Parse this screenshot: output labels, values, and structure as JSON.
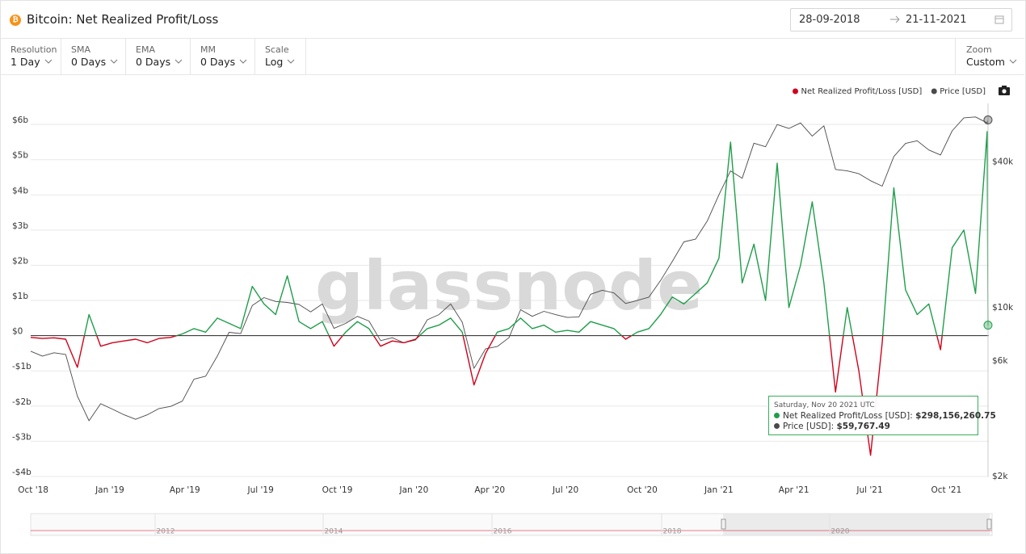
{
  "header": {
    "title": "Bitcoin: Net Realized Profit/Loss",
    "date_from": "28-09-2018",
    "date_to": "21-11-2021"
  },
  "controls": [
    {
      "label": "Resolution",
      "value": "1 Day"
    },
    {
      "label": "SMA",
      "value": "0 Days"
    },
    {
      "label": "EMA",
      "value": "0 Days"
    },
    {
      "label": "MM",
      "value": "0 Days"
    },
    {
      "label": "Scale",
      "value": "Log"
    }
  ],
  "zoom": {
    "label": "Zoom",
    "value": "Custom"
  },
  "watermark": "glassnode",
  "tooltip": {
    "title": "Saturday, Nov 20 2021 UTC",
    "labels": [
      "$298,156,260.75",
      "$59,767.49"
    ]
  },
  "navigator": {
    "labels": [
      "2012",
      "2014",
      "2016",
      "2018",
      "2020"
    ]
  },
  "chart_data": {
    "type": "line",
    "legend": "top-right",
    "grid": true,
    "x": [
      "2018-09-28",
      "2018-10-12",
      "2018-10-26",
      "2018-11-09",
      "2018-11-23",
      "2018-12-07",
      "2018-12-21",
      "2019-01-04",
      "2019-01-18",
      "2019-02-01",
      "2019-02-15",
      "2019-03-01",
      "2019-03-15",
      "2019-03-29",
      "2019-04-12",
      "2019-04-26",
      "2019-05-10",
      "2019-05-24",
      "2019-06-07",
      "2019-06-21",
      "2019-07-05",
      "2019-07-19",
      "2019-08-02",
      "2019-08-16",
      "2019-08-30",
      "2019-09-13",
      "2019-09-27",
      "2019-10-11",
      "2019-10-25",
      "2019-11-08",
      "2019-11-22",
      "2019-12-06",
      "2019-12-20",
      "2020-01-03",
      "2020-01-17",
      "2020-01-31",
      "2020-02-14",
      "2020-02-28",
      "2020-03-13",
      "2020-03-27",
      "2020-04-10",
      "2020-04-24",
      "2020-05-08",
      "2020-05-22",
      "2020-06-05",
      "2020-06-19",
      "2020-07-03",
      "2020-07-17",
      "2020-07-31",
      "2020-08-14",
      "2020-08-28",
      "2020-09-11",
      "2020-09-25",
      "2020-10-09",
      "2020-10-23",
      "2020-11-06",
      "2020-11-20",
      "2020-12-04",
      "2020-12-18",
      "2021-01-01",
      "2021-01-15",
      "2021-01-29",
      "2021-02-12",
      "2021-02-26",
      "2021-03-12",
      "2021-03-26",
      "2021-04-09",
      "2021-04-23",
      "2021-05-07",
      "2021-05-21",
      "2021-06-04",
      "2021-06-18",
      "2021-07-02",
      "2021-07-16",
      "2021-07-30",
      "2021-08-13",
      "2021-08-27",
      "2021-09-10",
      "2021-09-24",
      "2021-10-08",
      "2021-10-22",
      "2021-11-05",
      "2021-11-19",
      "2021-11-20"
    ],
    "xlim": [
      "2018-09-28",
      "2021-11-21"
    ],
    "xticks": [
      {
        "value": "2018-10-01",
        "label": "Oct '18"
      },
      {
        "value": "2019-01-01",
        "label": "Jan '19"
      },
      {
        "value": "2019-04-01",
        "label": "Apr '19"
      },
      {
        "value": "2019-07-01",
        "label": "Jul '19"
      },
      {
        "value": "2019-10-01",
        "label": "Oct '19"
      },
      {
        "value": "2020-01-01",
        "label": "Jan '20"
      },
      {
        "value": "2020-04-01",
        "label": "Apr '20"
      },
      {
        "value": "2020-07-01",
        "label": "Jul '20"
      },
      {
        "value": "2020-10-01",
        "label": "Oct '20"
      },
      {
        "value": "2021-01-01",
        "label": "Jan '21"
      },
      {
        "value": "2021-04-01",
        "label": "Apr '21"
      },
      {
        "value": "2021-07-01",
        "label": "Jul '21"
      },
      {
        "value": "2021-10-01",
        "label": "Oct '21"
      }
    ],
    "ylim": [
      -4000000000,
      6600000000
    ],
    "yticks": [
      {
        "value": -4000000000,
        "label": "-$4b"
      },
      {
        "value": -3000000000,
        "label": "-$3b"
      },
      {
        "value": -2000000000,
        "label": "-$2b"
      },
      {
        "value": -1000000000,
        "label": "-$1b"
      },
      {
        "value": 0,
        "label": "$0"
      },
      {
        "value": 1000000000,
        "label": "$1b"
      },
      {
        "value": 2000000000,
        "label": "$2b"
      },
      {
        "value": 3000000000,
        "label": "$3b"
      },
      {
        "value": 4000000000,
        "label": "$4b"
      },
      {
        "value": 5000000000,
        "label": "$5b"
      },
      {
        "value": 6000000000,
        "label": "$6b"
      }
    ],
    "y2lim": [
      2000,
      70000
    ],
    "y2log": true,
    "y2ticks": [
      {
        "value": 2000,
        "label": "$2k"
      },
      {
        "value": 6000,
        "label": "$6k"
      },
      {
        "value": 10000,
        "label": "$10k"
      },
      {
        "value": 40000,
        "label": "$40k"
      }
    ],
    "series": [
      {
        "name": "Net Realized Profit/Loss [USD]",
        "color": "#1f9e4a",
        "negative_color": "#d0021b",
        "axis": "y",
        "values": [
          -50000000,
          -80000000,
          -60000000,
          -100000000,
          -900000000,
          600000000,
          -300000000,
          -200000000,
          -150000000,
          -100000000,
          -200000000,
          -80000000,
          -50000000,
          50000000,
          200000000,
          100000000,
          500000000,
          350000000,
          200000000,
          1400000000,
          900000000,
          600000000,
          1700000000,
          400000000,
          200000000,
          400000000,
          -300000000,
          100000000,
          400000000,
          200000000,
          -300000000,
          -150000000,
          -200000000,
          -100000000,
          200000000,
          300000000,
          500000000,
          100000000,
          -1400000000,
          -500000000,
          100000000,
          200000000,
          500000000,
          200000000,
          300000000,
          100000000,
          150000000,
          100000000,
          400000000,
          300000000,
          200000000,
          -100000000,
          100000000,
          200000000,
          600000000,
          1100000000,
          900000000,
          1200000000,
          1500000000,
          2200000000,
          5500000000,
          1500000000,
          2600000000,
          1000000000,
          4900000000,
          800000000,
          2000000000,
          3800000000,
          1500000000,
          -1600000000,
          800000000,
          -1000000000,
          -3400000000,
          -200000000,
          4200000000,
          1300000000,
          600000000,
          900000000,
          -400000000,
          2500000000,
          3000000000,
          1200000000,
          5800000000,
          298156260.75
        ]
      },
      {
        "name": "Price [USD]",
        "color": "#4a4a4a",
        "axis": "y2",
        "values": [
          6600,
          6300,
          6500,
          6400,
          4300,
          3400,
          4000,
          3800,
          3600,
          3450,
          3600,
          3820,
          3900,
          4100,
          5050,
          5200,
          6300,
          7900,
          7800,
          10200,
          11000,
          10600,
          10500,
          10300,
          9600,
          10350,
          8200,
          8600,
          9200,
          8800,
          7300,
          7500,
          7150,
          7350,
          8900,
          9350,
          10350,
          8700,
          5600,
          6750,
          6900,
          7500,
          9800,
          9200,
          9650,
          9350,
          9100,
          9150,
          11350,
          11800,
          11500,
          10400,
          10700,
          11050,
          12950,
          15500,
          18700,
          19200,
          22800,
          29300,
          36800,
          34300,
          47900,
          46300,
          57200,
          55100,
          58100,
          51200,
          56500,
          37300,
          36800,
          35800,
          33500,
          31800,
          42200,
          47800,
          49000,
          44900,
          42800,
          53900,
          61000,
          61500,
          58100,
          59767.49
        ]
      }
    ]
  }
}
